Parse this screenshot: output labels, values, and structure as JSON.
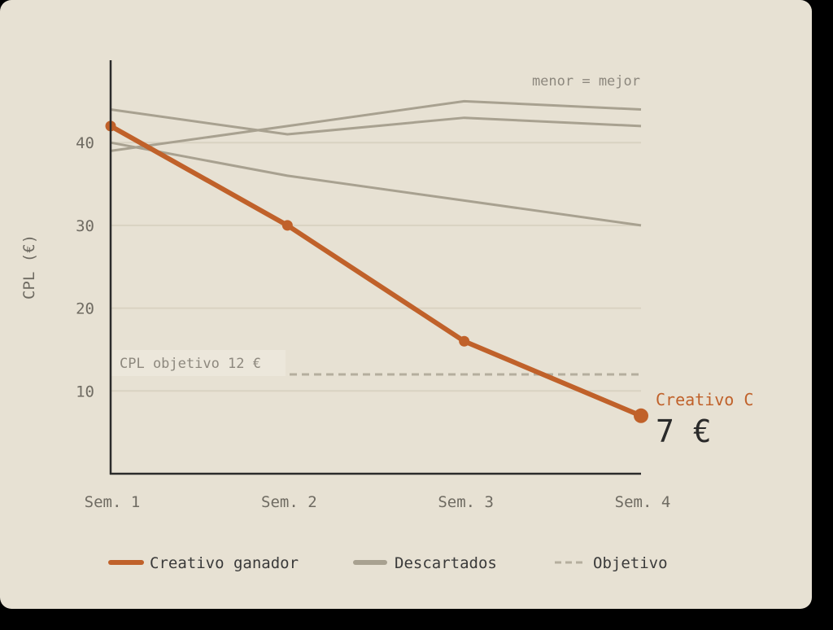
{
  "chart_data": {
    "type": "line",
    "x": [
      "Sem. 1",
      "Sem. 2",
      "Sem. 3",
      "Sem. 4"
    ],
    "ylabel": "CPL (€)",
    "ylim": [
      0,
      50
    ],
    "yticks": [
      10,
      20,
      30,
      40
    ],
    "grid": true,
    "series": [
      {
        "role": "winner",
        "values": [
          42,
          30,
          16,
          7
        ]
      },
      {
        "role": "discarded",
        "values": [
          44,
          41,
          43,
          42
        ]
      },
      {
        "role": "discarded",
        "values": [
          39,
          42,
          45,
          44
        ]
      },
      {
        "role": "discarded",
        "values": [
          40,
          36,
          33,
          30
        ]
      }
    ],
    "target": {
      "value": 12,
      "label": "CPL objetivo 12 €"
    },
    "annotation": "menor = mejor",
    "winner_callout": {
      "name": "Creativo C",
      "value": "7 €"
    },
    "legend": [
      {
        "label": "Creativo ganador",
        "style": "winner"
      },
      {
        "label": "Descartados",
        "style": "discarded"
      },
      {
        "label": "Objetivo",
        "style": "target"
      }
    ],
    "colors": {
      "winner": "#c0612a",
      "discarded": "#a8a190",
      "target": "#b5ae9e",
      "grid": "#d9d2c2",
      "axis": "#2b2b2b"
    }
  }
}
